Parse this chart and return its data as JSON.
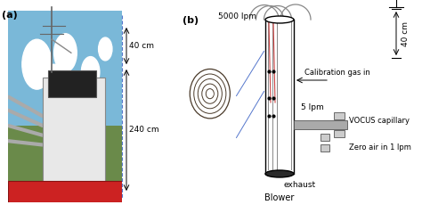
{
  "fig_width": 4.74,
  "fig_height": 2.39,
  "dpi": 100,
  "bg_color": "#ffffff",
  "label_a": "(a)",
  "label_b": "(b)",
  "annotation_40cm": "40 cm",
  "annotation_240cm": "240 cm",
  "annotation_5000lpm": "5000 lpm",
  "annotation_calib": "Calibration gas in",
  "annotation_5lpm": "5 lpm",
  "annotation_vocus": "VOCUS capillary",
  "annotation_zero": "Zero air in 1 lpm",
  "annotation_exhaust": "exhaust",
  "annotation_blower": "Blower",
  "annotation_40cm_right": "40 cm",
  "red_line_color": "#cc4444",
  "blue_line_color": "#5577cc"
}
